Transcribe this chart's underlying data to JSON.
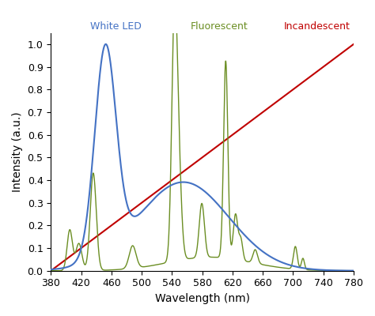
{
  "title": "",
  "xlabel": "Wavelength (nm)",
  "ylabel": "Intensity (a.u.)",
  "xlim": [
    380,
    780
  ],
  "ylim": [
    0,
    1.05
  ],
  "yticks": [
    0,
    0.1,
    0.2,
    0.3,
    0.4,
    0.5,
    0.6,
    0.7,
    0.8,
    0.9,
    1
  ],
  "xticks": [
    380,
    420,
    460,
    500,
    540,
    580,
    620,
    660,
    700,
    740,
    780
  ],
  "led_color": "#4472C4",
  "fluorescent_color": "#6B8E23",
  "incandescent_color": "#C00000",
  "label_led": "White LED",
  "label_fluorescent": "Fluorescent",
  "label_incandescent": "Incandescent",
  "background_color": "#ffffff"
}
